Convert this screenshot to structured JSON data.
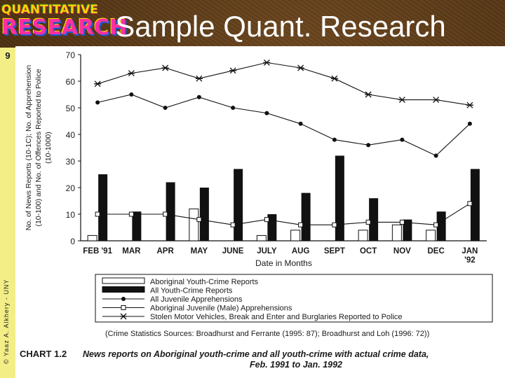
{
  "header": {
    "title": "Sample Quant. Research",
    "logo_line1": "QUANTITATIVE",
    "logo_line2": "RESEARCH",
    "slide_number": "9",
    "copyright": "© Yaaz A. Alkhery - UNY"
  },
  "colors": {
    "background": "#5c3a14",
    "strip": "#f3ee86",
    "title": "#ffffff",
    "ink": "#111111"
  },
  "chart_data": {
    "type": "bar",
    "categories": [
      "FEB '91",
      "MAR",
      "APR",
      "MAY",
      "JUNE",
      "JULY",
      "AUG",
      "SEPT",
      "OCT",
      "NOV",
      "DEC",
      "JAN '92"
    ],
    "xlabel": "Date in Months",
    "ylabel_lines": [
      "No. of News Reports (10-1C); No. of Apprehension",
      "(10-100) and No. of Offences Reported to Police",
      "(10-1000)"
    ],
    "ylim": [
      0,
      70
    ],
    "yticks": [
      0,
      10,
      20,
      30,
      40,
      50,
      60,
      70
    ],
    "series": [
      {
        "name": "Aboriginal Youth-Crime Reports",
        "kind": "bar",
        "fill": "white",
        "values": [
          2,
          0,
          0,
          12,
          0,
          2,
          4,
          0,
          4,
          6,
          4,
          0
        ]
      },
      {
        "name": "All Youth-Crime Reports",
        "kind": "bar",
        "fill": "black",
        "values": [
          25,
          11,
          22,
          20,
          27,
          10,
          18,
          32,
          16,
          8,
          11,
          27
        ]
      },
      {
        "name": "All Juvenile Apprehensions",
        "kind": "line",
        "marker": "dot",
        "values": [
          52,
          55,
          50,
          54,
          50,
          48,
          44,
          38,
          36,
          38,
          32,
          44
        ]
      },
      {
        "name": "Aboriginal Juvenile (Male) Apprehensions",
        "kind": "line",
        "marker": "square",
        "values": [
          10,
          10,
          10,
          8,
          6,
          8,
          6,
          6,
          7,
          7,
          6,
          14
        ]
      },
      {
        "name": "Stolen Motor Vehicles, Break and Enter and Burglaries Reported to Police",
        "kind": "line",
        "marker": "star",
        "values": [
          59,
          63,
          65,
          61,
          64,
          67,
          65,
          61,
          55,
          53,
          53,
          51
        ]
      }
    ],
    "legend_placement": "bottom",
    "source": "(Crime Statistics Sources: Broadhurst and Ferrante (1995: 87); Broadhurst and Loh (1996: 72))",
    "caption_label": "CHART 1.2",
    "caption_line1": "News reports on Aboriginal youth-crime and all youth-crime with actual crime data,",
    "caption_line2": "Feb. 1991 to Jan. 1992"
  }
}
